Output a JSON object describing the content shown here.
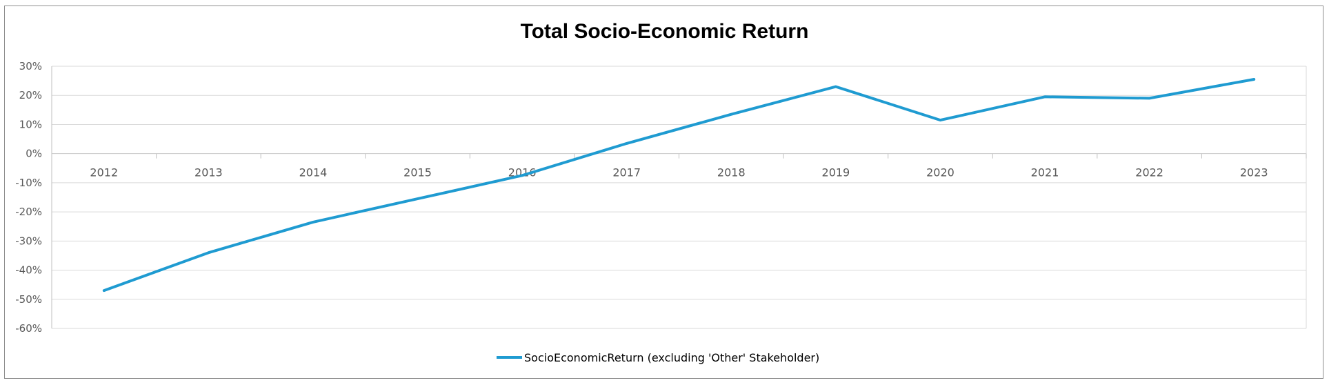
{
  "chart_data": {
    "type": "line",
    "title": "Total Socio-Economic Return",
    "xlabel": "",
    "ylabel": "",
    "categories": [
      "2012",
      "2013",
      "2014",
      "2015",
      "2016",
      "2017",
      "2018",
      "2019",
      "2020",
      "2021",
      "2022",
      "2023"
    ],
    "series": [
      {
        "name": "SocioEconomicReturn (excluding 'Other' Stakeholder)",
        "values": [
          -0.47,
          -0.34,
          -0.235,
          -0.155,
          -0.075,
          0.035,
          0.135,
          0.23,
          0.115,
          0.195,
          0.19,
          0.255
        ],
        "color": "#1f9bd1"
      }
    ],
    "y_ticks": [
      "30%",
      "20%",
      "10%",
      "0%",
      "-10%",
      "-20%",
      "-30%",
      "-40%",
      "-50%",
      "-60%"
    ],
    "ylim": [
      -0.6,
      0.3
    ],
    "grid": true,
    "legend_position": "bottom"
  }
}
